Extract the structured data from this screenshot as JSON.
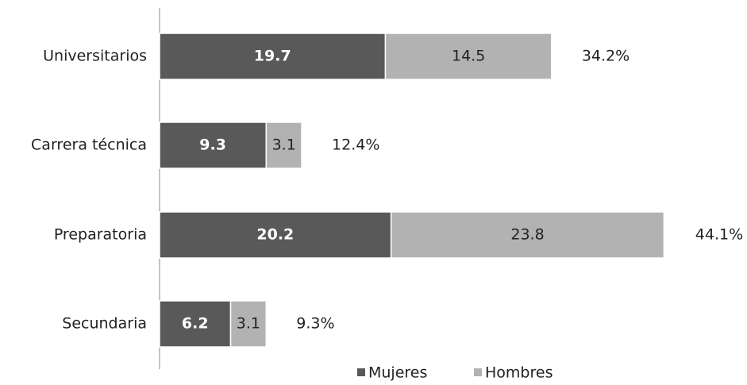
{
  "chart_data": {
    "type": "stacked-barh",
    "categories": [
      "Universitarios",
      "Carrera técnica",
      "Preparatoria",
      "Secundaria"
    ],
    "series": [
      {
        "name": "Mujeres",
        "color": "#595959",
        "values": [
          19.7,
          9.3,
          20.2,
          6.2
        ]
      },
      {
        "name": "Hombres",
        "color": "#b2b2b2",
        "values": [
          14.5,
          3.1,
          23.8,
          3.1
        ]
      }
    ],
    "totals": [
      34.2,
      12.4,
      44.1,
      9.3
    ],
    "total_labels": [
      "34.2%",
      "12.4%",
      "44.1%",
      "9.3%"
    ],
    "legend": "bottom"
  }
}
